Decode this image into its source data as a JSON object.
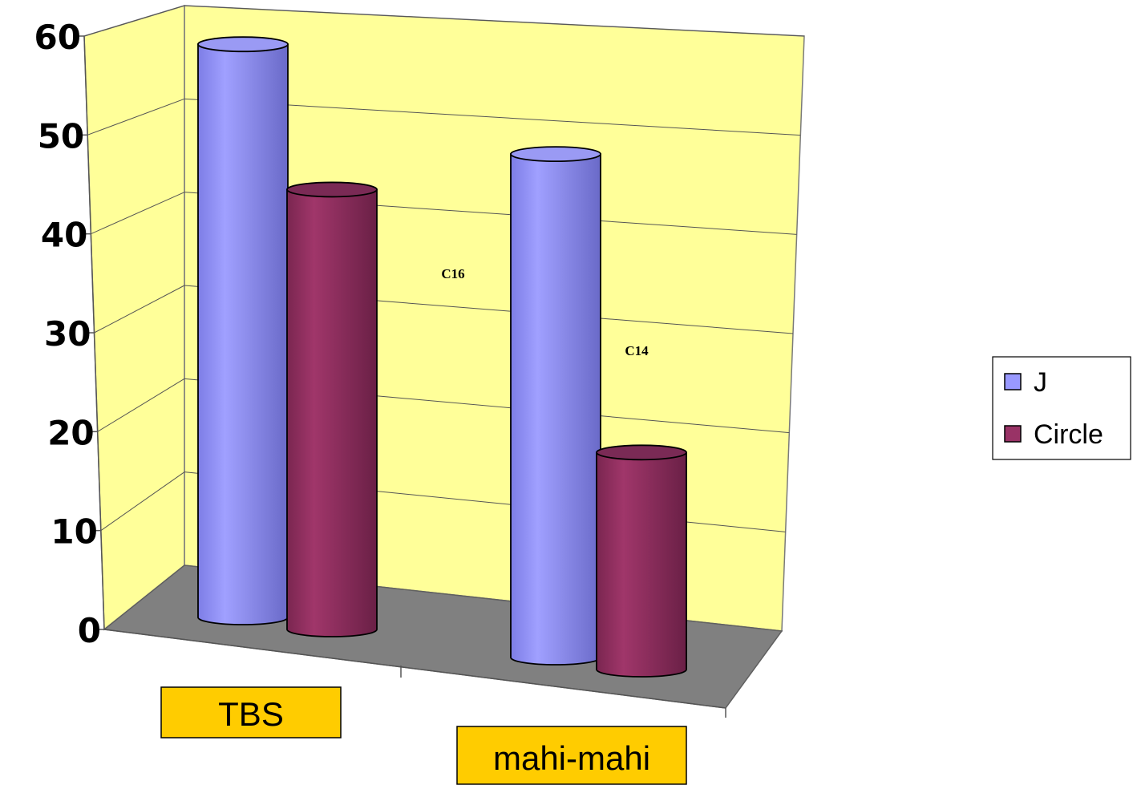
{
  "chart_data": {
    "type": "bar",
    "style": "3d-cylinder",
    "categories": [
      "TBS",
      "mahi-mahi"
    ],
    "series": [
      {
        "name": "J",
        "values": [
          58,
          51
        ],
        "color": "#9999ff"
      },
      {
        "name": "Circle",
        "values": [
          44.5,
          22
        ],
        "color": "#993366"
      }
    ],
    "ylim": [
      0,
      60
    ],
    "yticks": [
      "0",
      "10",
      "20",
      "30",
      "40",
      "50",
      "60"
    ],
    "annotations": [
      "C16",
      "C14"
    ],
    "grid": true,
    "legend": "right",
    "colors": {
      "wall": "#ffff99",
      "floor": "#808080",
      "category_label_bg": "#ffcc00"
    }
  }
}
